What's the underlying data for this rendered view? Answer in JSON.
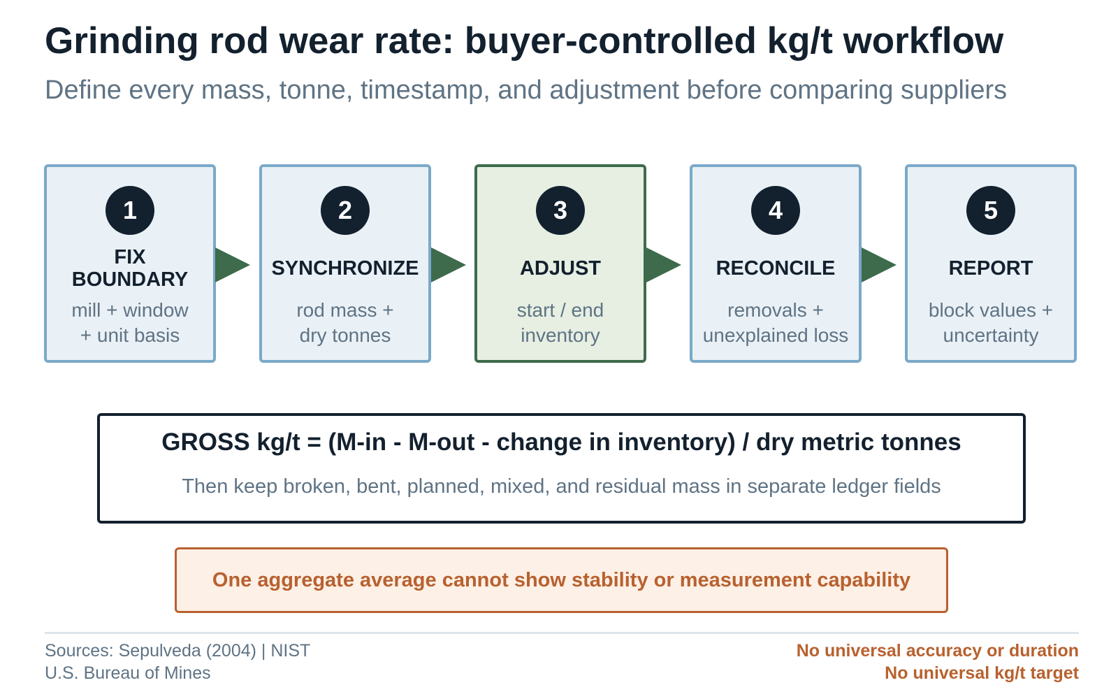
{
  "title": "Grinding rod wear rate: buyer-controlled kg/t workflow",
  "subtitle": "Define every mass, tonne, timestamp, and adjustment before comparing suppliers",
  "steps": [
    {
      "number": "1",
      "title_lines": [
        "FIX",
        "BOUNDARY"
      ],
      "desc_lines": [
        "mill + window",
        "+ unit basis"
      ],
      "highlight": false
    },
    {
      "number": "2",
      "title_lines": [
        "SYNCHRONIZE"
      ],
      "desc_lines": [
        "rod mass +",
        "dry tonnes"
      ],
      "highlight": false
    },
    {
      "number": "3",
      "title_lines": [
        "ADJUST"
      ],
      "desc_lines": [
        "start / end",
        "inventory"
      ],
      "highlight": true
    },
    {
      "number": "4",
      "title_lines": [
        "RECONCILE"
      ],
      "desc_lines": [
        "removals +",
        "unexplained loss"
      ],
      "highlight": false
    },
    {
      "number": "5",
      "title_lines": [
        "REPORT"
      ],
      "desc_lines": [
        "block values +",
        "uncertainty"
      ],
      "highlight": false
    }
  ],
  "formula": {
    "main": "GROSS kg/t = (M-in - M-out - change in inventory) / dry metric tonnes",
    "sub": "Then keep broken, bent, planned, mixed, and residual mass in separate ledger fields"
  },
  "warning": "One aggregate average cannot show stability or measurement capability",
  "footer": {
    "sources": [
      "Sources: Sepulveda (2004) | NIST",
      "U.S. Bureau of Mines"
    ],
    "notes": [
      "No universal accuracy or duration",
      "No universal kg/t target"
    ]
  },
  "colors": {
    "navy": "#13202e",
    "slate": "#5f7384",
    "step_border": "#7aa9c9",
    "step_fill": "#eaf1f6",
    "highlight_border": "#3d6b4c",
    "highlight_fill": "#e6efe2",
    "arrow": "#3d6b4c",
    "warning": "#b8612f",
    "warning_fill": "#fdf0e6"
  }
}
